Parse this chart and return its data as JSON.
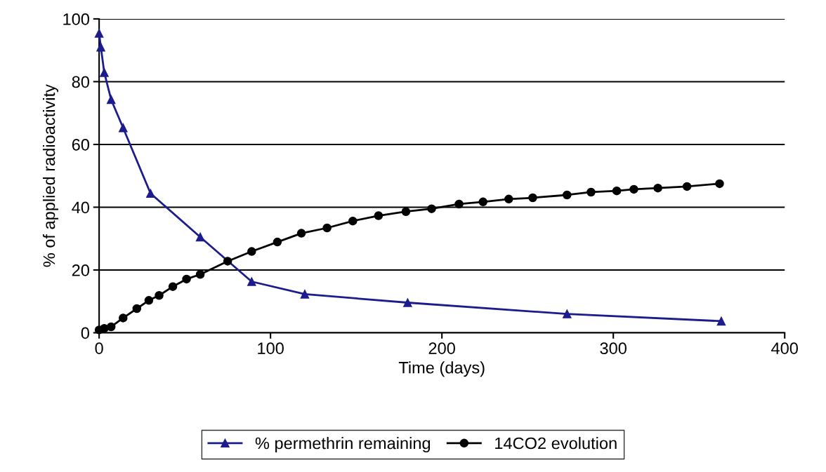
{
  "chart_data": {
    "type": "line",
    "xlabel": "Time (days)",
    "ylabel": "% of applied radioactivity",
    "xlim": [
      0,
      400
    ],
    "xticks": [
      0,
      100,
      200,
      300,
      400
    ],
    "ylim": [
      0,
      100
    ],
    "yticks": [
      0,
      20,
      40,
      60,
      80,
      100
    ],
    "grid": "y",
    "legend": "bottom",
    "series": [
      {
        "name": "% permethrin remaining",
        "color": "#1c1c8c",
        "marker": "triangle",
        "x": [
          0,
          1,
          3,
          7,
          14,
          30,
          59,
          89,
          120,
          180,
          273,
          363
        ],
        "values": [
          95.4,
          91.0,
          82.9,
          74.3,
          65.3,
          44.4,
          30.5,
          16.3,
          12.3,
          9.6,
          6.0,
          3.7
        ]
      },
      {
        "name": "14CO2 evolution",
        "color": "#000000",
        "marker": "circle",
        "x": [
          0,
          3,
          7,
          14,
          22,
          29,
          35,
          43,
          51,
          59,
          75,
          89,
          104,
          118,
          133,
          148,
          163,
          179,
          194,
          210,
          224,
          239,
          253,
          273,
          287,
          302,
          312,
          326,
          343,
          362
        ],
        "values": [
          0.9,
          1.4,
          1.9,
          4.7,
          7.7,
          10.3,
          11.9,
          14.7,
          17.1,
          18.6,
          22.8,
          25.9,
          28.9,
          31.7,
          33.4,
          35.6,
          37.3,
          38.6,
          39.5,
          41.0,
          41.7,
          42.6,
          43.0,
          43.9,
          44.8,
          45.2,
          45.7,
          46.1,
          46.6,
          47.5
        ]
      }
    ]
  }
}
